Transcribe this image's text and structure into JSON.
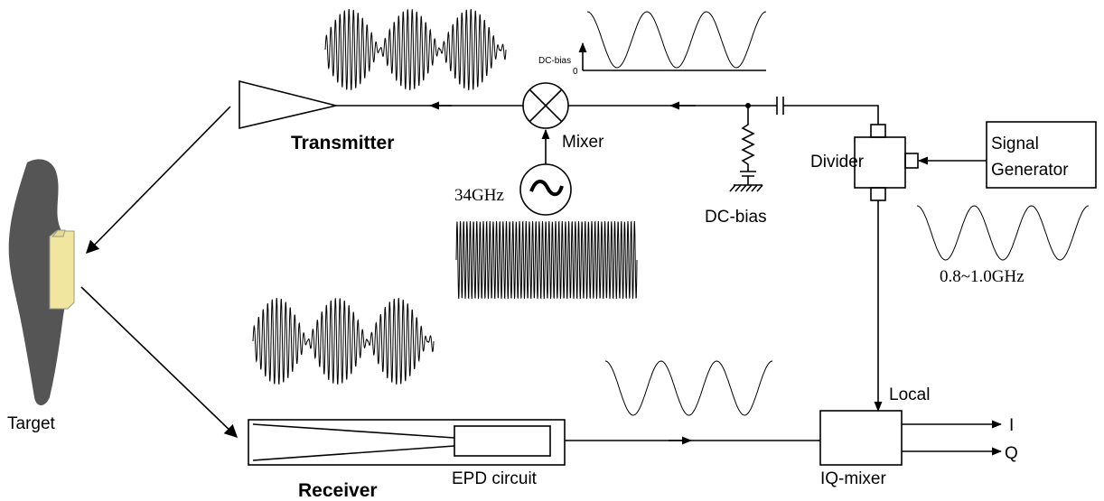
{
  "labels": {
    "transmitter": "Transmitter",
    "mixer": "Mixer",
    "source_freq": "34GHz",
    "dc_bias_axis": "DC-bias",
    "zero": "0",
    "dc_bias": "DC-bias",
    "divider": "Divider",
    "signal_generator": [
      "Signal",
      "Generator"
    ],
    "lo_freq": "0.8~1.0GHz",
    "local": "Local",
    "i": "I",
    "q": "Q",
    "iq_mixer": "IQ-mixer",
    "epd_circuit": "EPD circuit",
    "receiver": "Receiver",
    "target": "Target"
  }
}
